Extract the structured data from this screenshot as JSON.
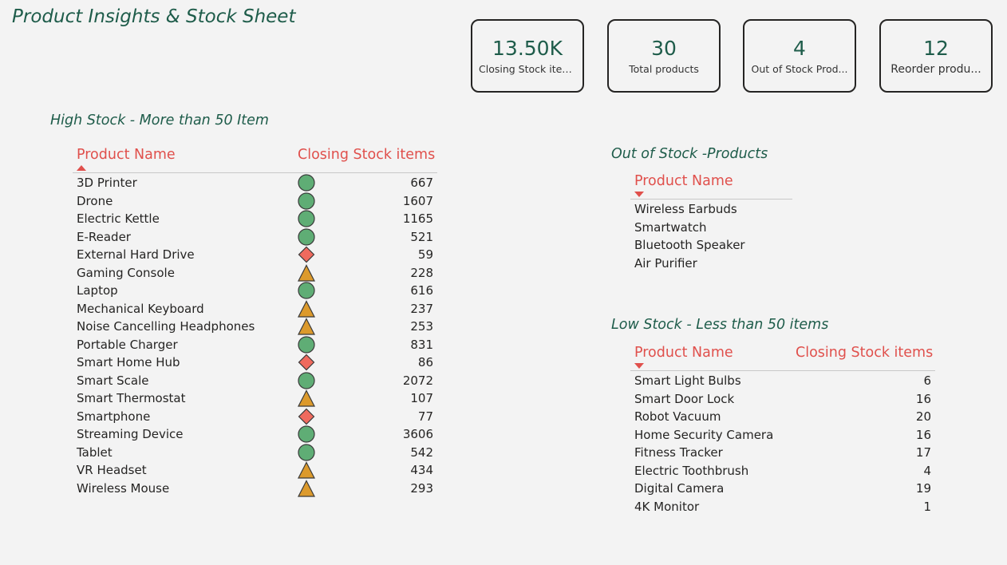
{
  "page": {
    "title": "Product Insights & Stock Sheet"
  },
  "kpis": [
    {
      "value": "13.50K",
      "label": "Closing Stock items"
    },
    {
      "value": "30",
      "label": "Total products"
    },
    {
      "value": "4",
      "label": "Out of Stock Prod..."
    },
    {
      "value": "12",
      "label": "Reorder produ..."
    }
  ],
  "high_stock": {
    "title": "High  Stock - More  than  50 Item",
    "col_name": "Product Name",
    "col_value": "Closing Stock items",
    "rows": [
      {
        "name": "3D Printer",
        "status": "green-circle",
        "value": "667"
      },
      {
        "name": "Drone",
        "status": "green-circle",
        "value": "1607"
      },
      {
        "name": "Electric Kettle",
        "status": "green-circle",
        "value": "1165"
      },
      {
        "name": "E-Reader",
        "status": "green-circle",
        "value": "521"
      },
      {
        "name": "External Hard Drive",
        "status": "red-diamond",
        "value": "59"
      },
      {
        "name": "Gaming Console",
        "status": "orange-triangle",
        "value": "228"
      },
      {
        "name": "Laptop",
        "status": "green-circle",
        "value": "616"
      },
      {
        "name": "Mechanical Keyboard",
        "status": "orange-triangle",
        "value": "237"
      },
      {
        "name": "Noise Cancelling Headphones",
        "status": "orange-triangle",
        "value": "253"
      },
      {
        "name": "Portable Charger",
        "status": "green-circle",
        "value": "831"
      },
      {
        "name": "Smart Home Hub",
        "status": "red-diamond",
        "value": "86"
      },
      {
        "name": "Smart Scale",
        "status": "green-circle",
        "value": "2072"
      },
      {
        "name": "Smart Thermostat",
        "status": "orange-triangle",
        "value": "107"
      },
      {
        "name": "Smartphone",
        "status": "red-diamond",
        "value": "77"
      },
      {
        "name": "Streaming Device",
        "status": "green-circle",
        "value": "3606"
      },
      {
        "name": "Tablet",
        "status": "green-circle",
        "value": "542"
      },
      {
        "name": "VR Headset",
        "status": "orange-triangle",
        "value": "434"
      },
      {
        "name": "Wireless Mouse",
        "status": "orange-triangle",
        "value": "293"
      }
    ]
  },
  "out_of_stock": {
    "title": "Out of Stock -Products",
    "col_name": "Product Name",
    "rows": [
      {
        "name": "Wireless Earbuds"
      },
      {
        "name": "Smartwatch"
      },
      {
        "name": "Bluetooth Speaker"
      },
      {
        "name": "Air Purifier"
      }
    ]
  },
  "low_stock": {
    "title": "Low Stock - Less than 50 items",
    "col_name": "Product Name",
    "col_value": "Closing Stock items",
    "rows": [
      {
        "name": "Smart Light Bulbs",
        "value": "6"
      },
      {
        "name": "Smart Door Lock",
        "value": "16"
      },
      {
        "name": "Robot Vacuum",
        "value": "20"
      },
      {
        "name": "Home Security Camera",
        "value": "16"
      },
      {
        "name": "Fitness Tracker",
        "value": "17"
      },
      {
        "name": "Electric Toothbrush",
        "value": "4"
      },
      {
        "name": "Digital Camera",
        "value": "19"
      },
      {
        "name": "4K Monitor",
        "value": "1"
      }
    ]
  },
  "colors": {
    "title_green": "#1e5c4a",
    "header_red": "#e0504c",
    "status_green": "#5fad75",
    "status_red": "#ef6a5e",
    "status_orange": "#dc9a2c"
  }
}
